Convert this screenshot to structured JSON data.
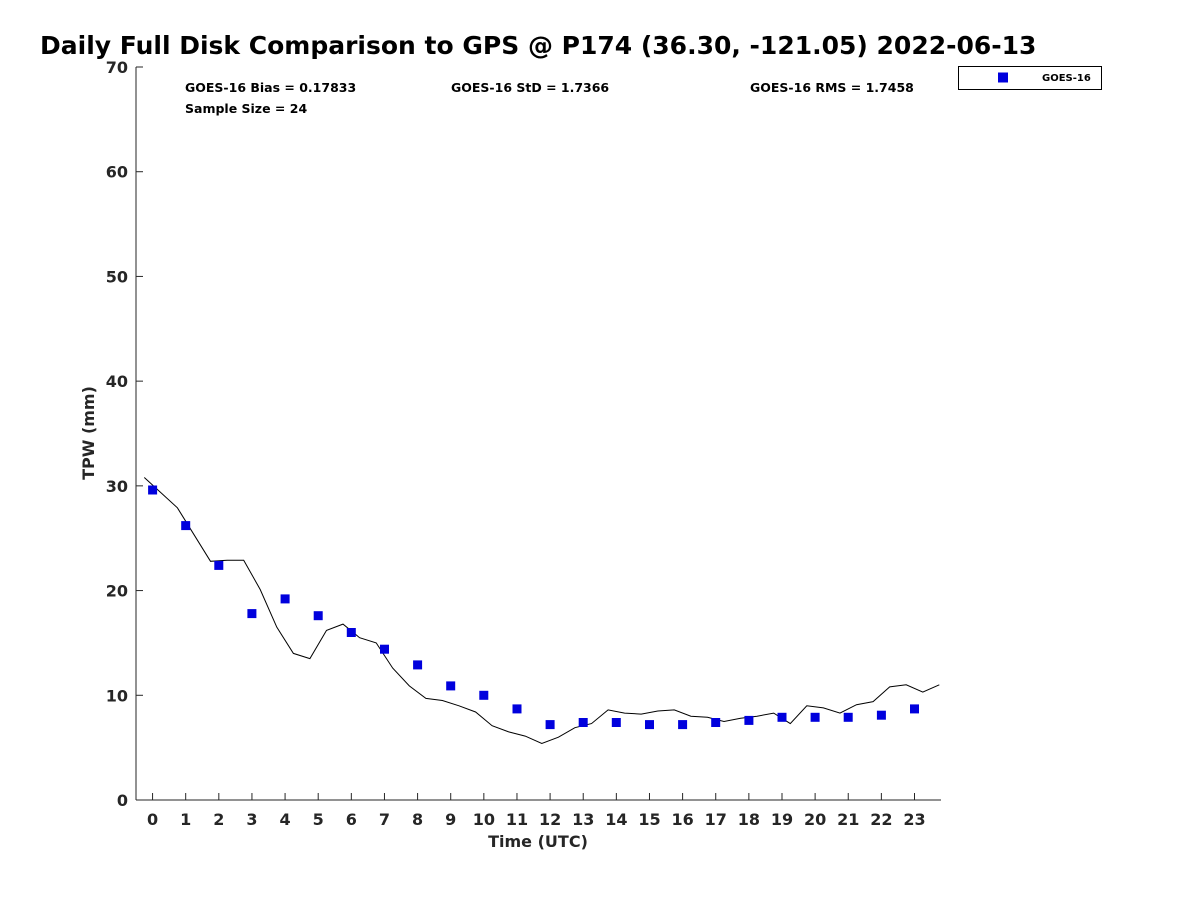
{
  "chart_data": {
    "type": "scatter",
    "title": "Daily Full Disk Comparison to GPS @ P174 (36.30, -121.05) 2022-06-13",
    "xlabel": "Time (UTC)",
    "ylabel": "TPW (mm)",
    "xlim": [
      -0.5,
      23.8
    ],
    "ylim": [
      0,
      70
    ],
    "x_ticks": [
      "0",
      "1",
      "2",
      "3",
      "4",
      "5",
      "6",
      "7",
      "8",
      "9",
      "10",
      "11",
      "12",
      "13",
      "14",
      "15",
      "16",
      "17",
      "18",
      "19",
      "20",
      "21",
      "22",
      "23"
    ],
    "y_ticks": [
      "0",
      "10",
      "20",
      "30",
      "40",
      "50",
      "60",
      "70"
    ],
    "grid": false,
    "legend_position": "top-right (outside plot)",
    "stats": {
      "bias": "GOES-16 Bias = 0.17833",
      "sample_size": "Sample Size = 24",
      "std": "GOES-16 StD = 1.7366",
      "rms": "GOES-16 RMS = 1.7458"
    },
    "series": [
      {
        "name": "GOES-16",
        "kind": "markers",
        "marker": "square",
        "color": "#0000dd",
        "x": [
          0,
          1,
          2,
          3,
          4,
          5,
          6,
          7,
          8,
          9,
          10,
          11,
          12,
          13,
          14,
          15,
          16,
          17,
          18,
          19,
          20,
          21,
          22,
          23
        ],
        "y": [
          29.6,
          26.2,
          22.4,
          17.8,
          19.2,
          17.6,
          16.0,
          14.4,
          12.9,
          10.9,
          10.0,
          8.7,
          7.2,
          7.4,
          7.4,
          7.2,
          7.2,
          7.4,
          7.6,
          7.9,
          7.9,
          7.9,
          8.1,
          8.7
        ]
      },
      {
        "kind": "line",
        "color": "#000000",
        "x": [
          -0.25,
          0.75,
          1.75,
          2.25,
          2.75,
          3.25,
          3.75,
          4.25,
          4.75,
          5.25,
          5.75,
          6.25,
          6.75,
          7.25,
          7.75,
          8.25,
          8.75,
          9.25,
          9.75,
          10.25,
          10.75,
          11.25,
          11.75,
          12.25,
          12.75,
          13.25,
          13.75,
          14.25,
          14.75,
          15.25,
          15.75,
          16.25,
          16.75,
          17.25,
          17.75,
          18.25,
          18.75,
          19.25,
          19.75,
          20.25,
          20.75,
          21.25,
          21.75,
          22.25,
          22.75,
          23.25,
          23.75
        ],
        "y": [
          30.8,
          27.9,
          22.8,
          22.9,
          22.9,
          20.1,
          16.5,
          14.0,
          13.5,
          16.2,
          16.8,
          15.5,
          15.0,
          12.6,
          10.9,
          9.7,
          9.5,
          9.0,
          8.4,
          7.1,
          6.5,
          6.1,
          5.4,
          6.0,
          6.9,
          7.3,
          8.6,
          8.3,
          8.2,
          8.5,
          8.6,
          8.0,
          7.9,
          7.5,
          7.8,
          8.0,
          8.3,
          7.3,
          9.0,
          8.8,
          8.3,
          9.1,
          9.4,
          10.8,
          11.0,
          10.3,
          11.0
        ]
      }
    ]
  }
}
